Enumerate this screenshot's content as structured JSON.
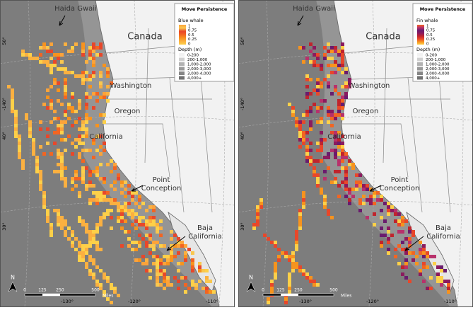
{
  "panels": [
    {
      "legend": {
        "title": "Move Persistence",
        "species": "Blue whale",
        "scale": [
          "1",
          "0.75",
          "0.5",
          "0.25",
          "0"
        ],
        "depth_title": "Depth (m)",
        "depth_classes": [
          "0-200",
          "200-1,000",
          "1,000-2,000",
          "2,000-3,000",
          "3,000-4,000",
          "4,000+"
        ]
      },
      "places": [
        "Haida Gwaii",
        "Canada",
        "Washington",
        "Oregon",
        "California"
      ],
      "point_conception": [
        "Point",
        "Conception"
      ],
      "baja_california": [
        "Baja",
        "California"
      ],
      "scale_bar": {
        "ticks": [
          "0",
          "125",
          "250",
          "500"
        ],
        "unit": "Miles"
      },
      "lon_labels": [
        "-130°",
        "-120°",
        "-110°"
      ],
      "lat_labels": [
        "50°",
        "-140°",
        "40°",
        "30°"
      ],
      "north": "N"
    },
    {
      "legend": {
        "title": "Move Persistence",
        "species": "Fin whale",
        "scale": [
          "1",
          "0.75",
          "0.5",
          "0.25",
          "0"
        ],
        "depth_title": "Depth (m)",
        "depth_classes": [
          "0-200",
          "200-1,000",
          "1,000-2,000",
          "2,000-3,000",
          "3,000-4,000",
          "4,000+"
        ]
      },
      "places": [
        "Haida Gwaii",
        "Canada",
        "Washington",
        "Oregon",
        "California"
      ],
      "point_conception": [
        "Point",
        "Conception"
      ],
      "baja_california": [
        "Baja",
        "California"
      ],
      "scale_bar": {
        "ticks": [
          "0",
          "125",
          "250",
          "500"
        ],
        "unit": "Miles"
      },
      "lon_labels": [
        "-130°",
        "-120°",
        "-110°"
      ],
      "lat_labels": [
        "50°",
        "-140°",
        "40°",
        "30°"
      ],
      "north": "N"
    }
  ]
}
